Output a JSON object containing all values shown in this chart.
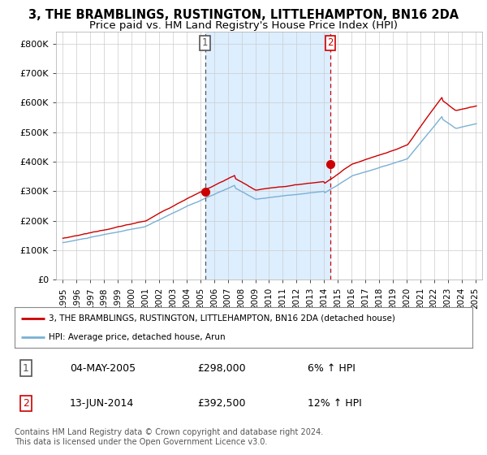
{
  "title": "3, THE BRAMBLINGS, RUSTINGTON, LITTLEHAMPTON, BN16 2DA",
  "subtitle": "Price paid vs. HM Land Registry's House Price Index (HPI)",
  "title_fontsize": 10.5,
  "subtitle_fontsize": 9.5,
  "bg_color": "#ffffff",
  "plot_bg_color": "#ffffff",
  "ylabel_ticks": [
    "£0",
    "£100K",
    "£200K",
    "£300K",
    "£400K",
    "£500K",
    "£600K",
    "£700K",
    "£800K"
  ],
  "ytick_values": [
    0,
    100000,
    200000,
    300000,
    400000,
    500000,
    600000,
    700000,
    800000
  ],
  "ylim": [
    0,
    840000
  ],
  "xlim_start": 1994.5,
  "xlim_end": 2025.5,
  "line_color_house": "#cc0000",
  "line_color_hpi": "#7ab0d4",
  "transaction1_x": 2005.34,
  "transaction1_y": 298000,
  "transaction1_label": "1",
  "transaction2_x": 2014.45,
  "transaction2_y": 392500,
  "transaction2_label": "2",
  "vline1_color": "#555555",
  "vline2_color": "#cc0000",
  "shade_color": "#ddeeff",
  "marker_color": "#cc0000",
  "legend_label_house": "3, THE BRAMBLINGS, RUSTINGTON, LITTLEHAMPTON, BN16 2DA (detached house)",
  "legend_label_hpi": "HPI: Average price, detached house, Arun",
  "table_rows": [
    {
      "num": "1",
      "date": "04-MAY-2005",
      "price": "£298,000",
      "pct": "6% ↑ HPI"
    },
    {
      "num": "2",
      "date": "13-JUN-2014",
      "price": "£392,500",
      "pct": "12% ↑ HPI"
    }
  ],
  "footer": "Contains HM Land Registry data © Crown copyright and database right 2024.\nThis data is licensed under the Open Government Licence v3.0.",
  "footer_fontsize": 7.0,
  "x_tick_years": [
    1995,
    1996,
    1997,
    1998,
    1999,
    2000,
    2001,
    2002,
    2003,
    2004,
    2005,
    2006,
    2007,
    2008,
    2009,
    2010,
    2011,
    2012,
    2013,
    2014,
    2015,
    2016,
    2017,
    2018,
    2019,
    2020,
    2021,
    2022,
    2023,
    2024,
    2025
  ]
}
